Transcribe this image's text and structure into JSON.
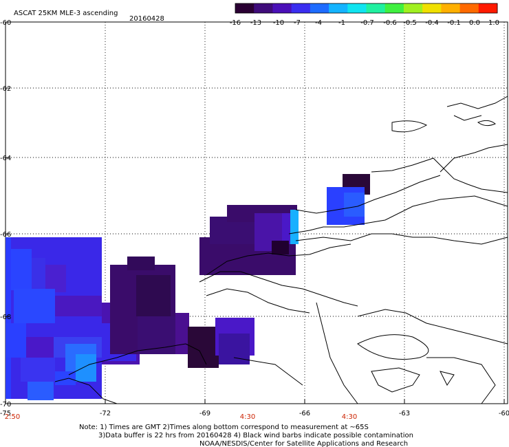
{
  "header": {
    "title": "ASCAT 25KM MLE-3 ascending",
    "date": "20160428"
  },
  "colorbar": {
    "stops": [
      "#2a0033",
      "#3f0c7a",
      "#4a10b8",
      "#3a2ef0",
      "#1e6cff",
      "#14b4ff",
      "#10e4f0",
      "#20f0a0",
      "#40f040",
      "#a0f020",
      "#f0e000",
      "#ffb000",
      "#ff6a00",
      "#ff1a00"
    ],
    "labels": [
      "-16",
      "-13",
      "-10",
      "-7",
      "-4",
      "-1",
      "-0.7",
      "-0.6",
      "-0.5",
      "-0.4",
      "-0.1",
      "0.0",
      "1.0"
    ]
  },
  "axes": {
    "lat_labels": [
      "-60",
      "-62",
      "-64",
      "-66",
      "-68",
      "-70"
    ],
    "lon_labels": [
      "-75",
      "-72",
      "-69",
      "-66",
      "-63",
      "-60"
    ],
    "time_labels": [
      "2:50",
      "4:30",
      "4:30"
    ]
  },
  "notes": {
    "line1": "Note: 1) Times are GMT 2)Times along bottom correspond to measurement at ~65S",
    "line2": "3)Data buffer is 22 hrs from 20160428 4) Black wind barbs indicate possible contamination",
    "line3": "NOAA/NESDIS/Center for Satellite Applications and Research"
  },
  "colors": {
    "dark_purple": "#2a0a3a",
    "purple": "#4a1090",
    "indigo": "#4a18c8",
    "blue": "#2a3cff",
    "light_blue": "#1e78ff",
    "cyan": "#18c0ff",
    "time_red": "#cc2200"
  }
}
